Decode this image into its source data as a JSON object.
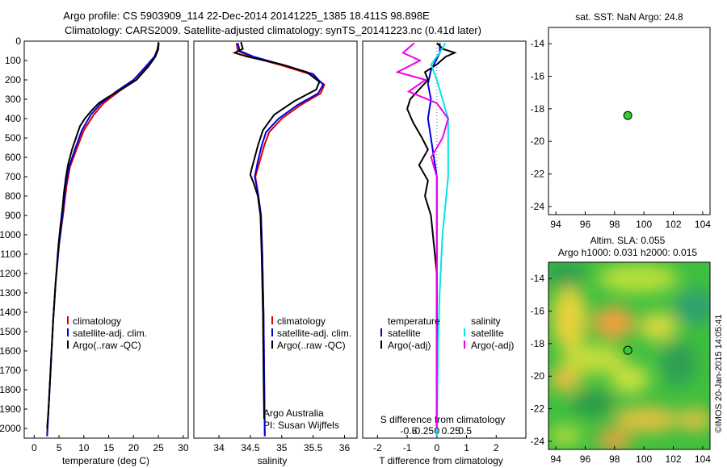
{
  "header": {
    "line1": "Argo profile: CS 5903909_114 22-Dec-2014 20141225_1385 18.411S 98.898E",
    "line2": "Climatology: CARS2009. Satellite-adjusted climatology: synTS_20141223.nc (0.41d later)"
  },
  "colors": {
    "clim": "#dd0000",
    "sat": "#0000dd",
    "argo": "#000000",
    "sal_sat": "#00e5ee",
    "sal_argo": "#ee00ee",
    "map_point": "#33cc33"
  },
  "chart_data": [
    {
      "type": "line",
      "name": "temperature-profile",
      "xlabel": "temperature (deg C)",
      "ylabel": "",
      "xlim": [
        -2,
        31
      ],
      "ylim": [
        2050,
        0
      ],
      "xticks": [
        0,
        5,
        10,
        15,
        20,
        25,
        30
      ],
      "yticks": [
        0,
        100,
        200,
        300,
        400,
        500,
        600,
        700,
        800,
        900,
        1000,
        1100,
        1200,
        1300,
        1400,
        1500,
        1600,
        1700,
        1800,
        1900,
        2000
      ],
      "legend": [
        "climatology",
        "satellite-adj. clim.",
        "Argo(..raw -QC)"
      ],
      "series": [
        {
          "name": "climatology",
          "color": "clim",
          "points": [
            [
              25.0,
              10
            ],
            [
              24.8,
              40
            ],
            [
              24.2,
              80
            ],
            [
              22.8,
              130
            ],
            [
              20.5,
              200
            ],
            [
              17.0,
              260
            ],
            [
              14.0,
              320
            ],
            [
              12.0,
              380
            ],
            [
              10.0,
              460
            ],
            [
              8.5,
              560
            ],
            [
              7.2,
              650
            ],
            [
              6.5,
              750
            ],
            [
              5.8,
              900
            ],
            [
              5.0,
              1050
            ],
            [
              4.3,
              1250
            ],
            [
              3.8,
              1450
            ],
            [
              3.3,
              1700
            ],
            [
              2.9,
              1900
            ],
            [
              2.6,
              2040
            ]
          ]
        },
        {
          "name": "satellite-adj. clim.",
          "color": "sat",
          "points": [
            [
              25.1,
              10
            ],
            [
              24.9,
              40
            ],
            [
              24.2,
              80
            ],
            [
              22.5,
              130
            ],
            [
              20.0,
              200
            ],
            [
              16.5,
              260
            ],
            [
              13.5,
              320
            ],
            [
              11.4,
              380
            ],
            [
              9.6,
              460
            ],
            [
              8.2,
              560
            ],
            [
              7.0,
              650
            ],
            [
              6.3,
              750
            ],
            [
              5.7,
              900
            ],
            [
              5.0,
              1050
            ],
            [
              4.3,
              1250
            ],
            [
              3.8,
              1450
            ],
            [
              3.3,
              1700
            ],
            [
              2.9,
              1900
            ],
            [
              2.6,
              2040
            ]
          ]
        },
        {
          "name": "Argo(..raw -QC)",
          "color": "argo",
          "points": [
            [
              25.0,
              5
            ],
            [
              25.0,
              40
            ],
            [
              24.4,
              80
            ],
            [
              23.0,
              130
            ],
            [
              20.6,
              200
            ],
            [
              17.2,
              255
            ],
            [
              14.8,
              290
            ],
            [
              13.0,
              320
            ],
            [
              11.5,
              360
            ],
            [
              10.2,
              400
            ],
            [
              9.2,
              440
            ],
            [
              8.4,
              500
            ],
            [
              7.6,
              560
            ],
            [
              6.8,
              640
            ],
            [
              6.4,
              700
            ],
            [
              6.0,
              780
            ],
            [
              5.7,
              860
            ],
            [
              5.3,
              950
            ],
            [
              4.9,
              1050
            ],
            [
              4.3,
              1250
            ],
            [
              3.8,
              1450
            ],
            [
              3.3,
              1700
            ],
            [
              2.9,
              1900
            ],
            [
              2.6,
              2000
            ]
          ]
        }
      ]
    },
    {
      "type": "line",
      "name": "salinity-profile",
      "xlabel": "salinity",
      "ylabel": "",
      "xlim": [
        33.6,
        36.2
      ],
      "ylim": [
        2050,
        0
      ],
      "xticks": [
        34,
        34.5,
        35,
        35.5,
        36
      ],
      "legend": [
        "climatology",
        "satellite-adj. clim.",
        "Argo(..raw -QC)"
      ],
      "annotations": [
        "Argo Australia",
        "PI: Susan Wijffels"
      ],
      "series": [
        {
          "name": "climatology",
          "color": "clim",
          "points": [
            [
              34.28,
              10
            ],
            [
              34.3,
              50
            ],
            [
              34.5,
              80
            ],
            [
              35.05,
              130
            ],
            [
              35.45,
              170
            ],
            [
              35.68,
              225
            ],
            [
              35.62,
              270
            ],
            [
              35.3,
              330
            ],
            [
              35.0,
              400
            ],
            [
              34.8,
              470
            ],
            [
              34.72,
              540
            ],
            [
              34.65,
              620
            ],
            [
              34.58,
              700
            ],
            [
              34.62,
              780
            ],
            [
              34.67,
              900
            ],
            [
              34.69,
              1100
            ],
            [
              34.71,
              1400
            ],
            [
              34.72,
              1700
            ],
            [
              34.73,
              2040
            ]
          ]
        },
        {
          "name": "satellite-adj. clim.",
          "color": "sat",
          "points": [
            [
              34.3,
              10
            ],
            [
              34.33,
              50
            ],
            [
              34.55,
              80
            ],
            [
              35.1,
              130
            ],
            [
              35.5,
              170
            ],
            [
              35.66,
              225
            ],
            [
              35.58,
              270
            ],
            [
              35.25,
              330
            ],
            [
              34.95,
              400
            ],
            [
              34.75,
              470
            ],
            [
              34.68,
              540
            ],
            [
              34.62,
              620
            ],
            [
              34.57,
              700
            ],
            [
              34.62,
              780
            ],
            [
              34.67,
              900
            ],
            [
              34.69,
              1100
            ],
            [
              34.71,
              1400
            ],
            [
              34.72,
              1700
            ],
            [
              34.73,
              2040
            ]
          ]
        },
        {
          "name": "Argo(..raw -QC)",
          "color": "argo",
          "points": [
            [
              34.35,
              5
            ],
            [
              34.38,
              40
            ],
            [
              34.25,
              60
            ],
            [
              34.45,
              80
            ],
            [
              35.0,
              120
            ],
            [
              35.4,
              160
            ],
            [
              35.6,
              210
            ],
            [
              35.55,
              250
            ],
            [
              35.2,
              310
            ],
            [
              34.88,
              380
            ],
            [
              34.7,
              460
            ],
            [
              34.62,
              540
            ],
            [
              34.57,
              600
            ],
            [
              34.52,
              660
            ],
            [
              34.5,
              690
            ],
            [
              34.55,
              730
            ],
            [
              34.62,
              800
            ],
            [
              34.66,
              900
            ],
            [
              34.68,
              1100
            ],
            [
              34.7,
              1400
            ],
            [
              34.71,
              1700
            ],
            [
              34.72,
              1950
            ]
          ]
        }
      ]
    },
    {
      "type": "line",
      "name": "difference-profile",
      "xlabel": "T difference from climatology",
      "title_bottom": "S difference from climatology",
      "xlim": [
        -2.5,
        3.0
      ],
      "ylim": [
        2050,
        0
      ],
      "xticks": [
        -2,
        -1,
        0,
        1,
        2
      ],
      "sal_xticks": [
        -0.5,
        -0.25,
        0,
        0.25,
        0.5
      ],
      "sal_tick_labels": [
        "-0.5",
        "-0.25",
        "0",
        "0.25",
        "0.5"
      ],
      "legend": {
        "temperature": [
          "satellite",
          "Argo(-adj)"
        ],
        "salinity": [
          "satellite",
          "Argo(-adj)"
        ]
      },
      "legend_headers": [
        "temperature",
        "salinity"
      ],
      "series": [
        {
          "name": "T satellite",
          "color": "sat",
          "points": [
            [
              0.1,
              10
            ],
            [
              0.1,
              60
            ],
            [
              -0.2,
              150
            ],
            [
              -0.3,
              220
            ],
            [
              -0.2,
              300
            ],
            [
              -0.3,
              400
            ],
            [
              -0.2,
              500
            ],
            [
              -0.1,
              600
            ],
            [
              0.0,
              700
            ],
            [
              0.0,
              900
            ],
            [
              0.0,
              1200
            ],
            [
              0.0,
              1600
            ],
            [
              0.0,
              2040
            ]
          ]
        },
        {
          "name": "T Argo(-adj)",
          "color": "argo",
          "points": [
            [
              0.0,
              10
            ],
            [
              0.2,
              40
            ],
            [
              0.6,
              60
            ],
            [
              0.3,
              80
            ],
            [
              0.0,
              120
            ],
            [
              -0.4,
              160
            ],
            [
              -0.3,
              200
            ],
            [
              -0.6,
              250
            ],
            [
              -0.9,
              300
            ],
            [
              -1.0,
              350
            ],
            [
              -0.8,
              420
            ],
            [
              -0.5,
              500
            ],
            [
              -0.3,
              560
            ],
            [
              -0.6,
              640
            ],
            [
              -0.3,
              720
            ],
            [
              -0.4,
              800
            ],
            [
              -0.2,
              900
            ],
            [
              -0.1,
              1050
            ],
            [
              0.0,
              1200
            ],
            [
              0.0,
              1500
            ],
            [
              0.0,
              2000
            ]
          ]
        },
        {
          "name": "S satellite",
          "color": "sal_sat",
          "points": [
            [
              0.15,
              10
            ],
            [
              0.05,
              60
            ],
            [
              -0.1,
              120
            ],
            [
              0.0,
              200
            ],
            [
              0.1,
              300
            ],
            [
              0.2,
              400
            ],
            [
              0.2,
              550
            ],
            [
              0.2,
              700
            ],
            [
              0.15,
              850
            ],
            [
              0.1,
              1000
            ],
            [
              0.05,
              1300
            ],
            [
              0.02,
              1600
            ],
            [
              0.0,
              2040
            ]
          ]
        },
        {
          "name": "S Argo(-adj)",
          "color": "sal_argo",
          "points": [
            [
              -0.4,
              10
            ],
            [
              -0.6,
              60
            ],
            [
              -0.3,
              100
            ],
            [
              -0.7,
              160
            ],
            [
              -0.2,
              200
            ],
            [
              -0.5,
              260
            ],
            [
              0.0,
              320
            ],
            [
              0.2,
              400
            ],
            [
              0.1,
              500
            ],
            [
              -0.1,
              600
            ],
            [
              0.0,
              700
            ],
            [
              0.0,
              900
            ],
            [
              0.0,
              1200
            ],
            [
              0.0,
              2000
            ]
          ]
        }
      ]
    },
    {
      "type": "scatter",
      "name": "sst-map",
      "title": "sat. SST: NaN Argo: 24.8",
      "xlim": [
        93.5,
        104.5
      ],
      "ylim": [
        -24.5,
        -13
      ],
      "xticks": [
        94,
        96,
        98,
        100,
        102,
        104
      ],
      "yticks": [
        -14,
        -16,
        -18,
        -20,
        -22,
        -24
      ],
      "points": [
        [
          98.9,
          -18.41
        ]
      ]
    },
    {
      "type": "heatmap",
      "name": "sla-map",
      "title1": "Altim. SLA: 0.055",
      "title2": "Argo h1000: 0.031 h2000: 0.015",
      "xlim": [
        93.5,
        104.5
      ],
      "ylim": [
        -24.5,
        -13
      ],
      "xticks": [
        94,
        96,
        98,
        100,
        102,
        104
      ],
      "yticks": [
        -14,
        -16,
        -18,
        -20,
        -22,
        -24
      ],
      "points": [
        [
          98.9,
          -18.41
        ]
      ]
    }
  ],
  "footer": {
    "credit": "©IMOS 20-Jan-2015 14:05:41"
  }
}
